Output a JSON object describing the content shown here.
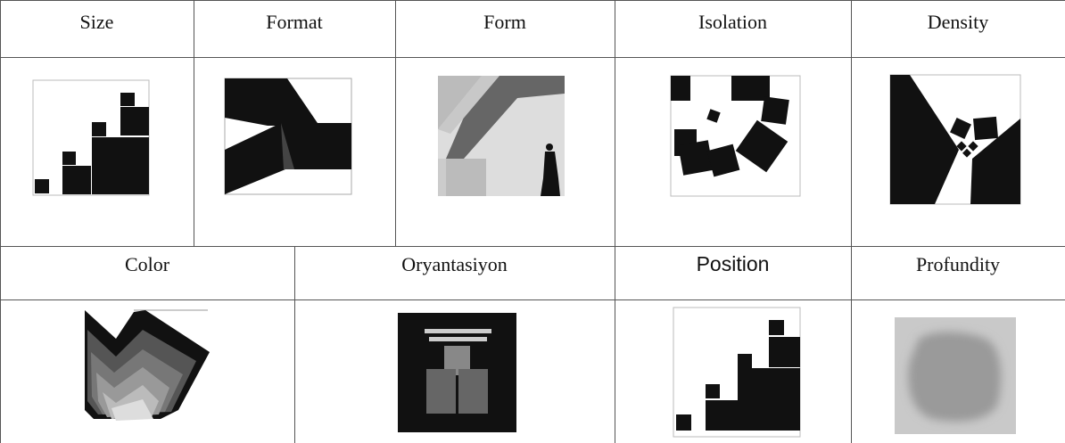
{
  "table": {
    "rows": [
      [
        "Size",
        "Format",
        "Form",
        "Isolation",
        "Density"
      ],
      [
        "Color",
        "Oryantasiyon",
        "Position",
        "Profundity"
      ]
    ]
  }
}
